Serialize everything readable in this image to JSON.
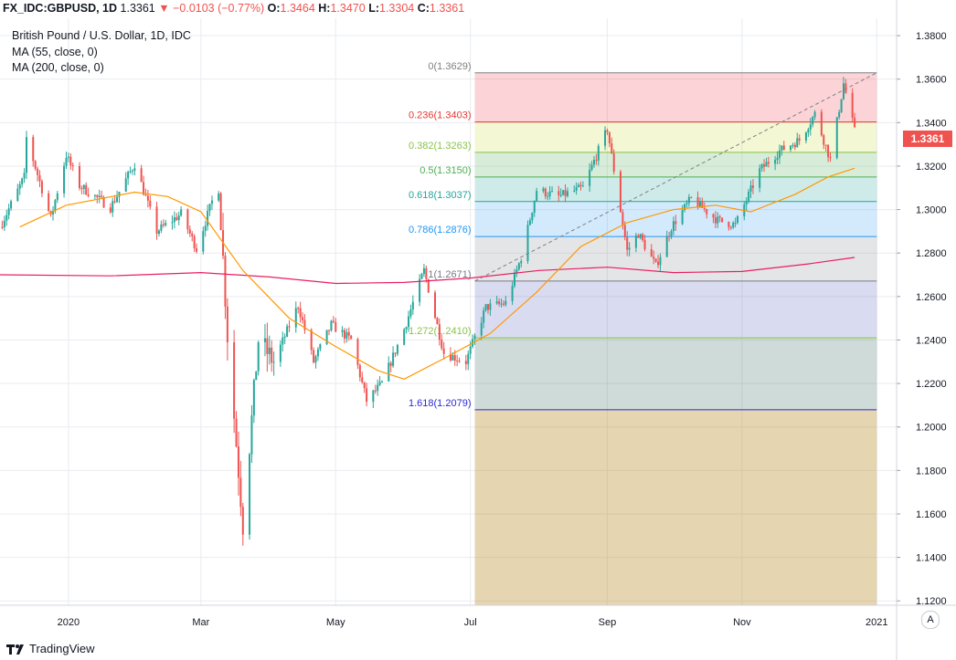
{
  "header": {
    "symbol": "FX_IDC:GBPUSD, 1D",
    "last": "1.3361",
    "change_arrow": "▼",
    "change": "−0.0103 (−0.77%)",
    "open_label": "O:",
    "open": "1.3464",
    "high_label": "H:",
    "high": "1.3470",
    "low_label": "L:",
    "low": "1.3304",
    "close_label": "C:",
    "close": "1.3361"
  },
  "legend": {
    "title": "British Pound / U.S. Dollar, 1D, IDC",
    "ma55": "MA (55, close, 0)",
    "ma200": "MA (200, close, 0)"
  },
  "footer": {
    "brand": "TradingView",
    "auto_button": "A",
    "logo_icon": "tradingview-logo-icon"
  },
  "price_tag": "1.3361",
  "colors": {
    "up": "#26a69a",
    "down": "#ef5350",
    "ma55": "#ff9800",
    "ma200": "#e91e63",
    "grid": "#e9ebf0",
    "axis_text": "#131722"
  },
  "chart_data": {
    "type": "candlestick",
    "title": "British Pound / U.S. Dollar, 1D, IDC",
    "x_ticks": [
      "2020",
      "Mar",
      "May",
      "Jul",
      "Sep",
      "Nov",
      "2021"
    ],
    "y_ticks": [
      "1.1200",
      "1.1400",
      "1.1600",
      "1.1800",
      "1.2000",
      "1.2200",
      "1.2400",
      "1.2600",
      "1.2800",
      "1.3000",
      "1.3200",
      "1.3400",
      "1.3600",
      "1.3800"
    ],
    "y_range": [
      1.118,
      1.388
    ],
    "x_range": [
      "2019-12-01",
      "2021-01-10"
    ],
    "grid": true,
    "close_path": [
      [
        "2019-12-01",
        1.292
      ],
      [
        "2019-12-12",
        1.315
      ],
      [
        "2019-12-13",
        1.333
      ],
      [
        "2019-12-24",
        1.296
      ],
      [
        "2019-12-31",
        1.325
      ],
      [
        "2020-01-06",
        1.311
      ],
      [
        "2020-01-20",
        1.301
      ],
      [
        "2020-01-31",
        1.321
      ],
      [
        "2020-02-10",
        1.29
      ],
      [
        "2020-02-21",
        1.298
      ],
      [
        "2020-02-28",
        1.282
      ],
      [
        "2020-03-09",
        1.313
      ],
      [
        "2020-03-13",
        1.242
      ],
      [
        "2020-03-20",
        1.155
      ],
      [
        "2020-03-27",
        1.24
      ],
      [
        "2020-04-03",
        1.23
      ],
      [
        "2020-04-14",
        1.256
      ],
      [
        "2020-04-21",
        1.23
      ],
      [
        "2020-04-29",
        1.247
      ],
      [
        "2020-05-08",
        1.24
      ],
      [
        "2020-05-15",
        1.212
      ],
      [
        "2020-05-22",
        1.22
      ],
      [
        "2020-06-01",
        1.245
      ],
      [
        "2020-06-10",
        1.272
      ],
      [
        "2020-06-19",
        1.234
      ],
      [
        "2020-06-29",
        1.23
      ],
      [
        "2020-07-08",
        1.255
      ],
      [
        "2020-07-17",
        1.257
      ],
      [
        "2020-07-24",
        1.278
      ],
      [
        "2020-07-31",
        1.309
      ],
      [
        "2020-08-10",
        1.306
      ],
      [
        "2020-08-21",
        1.31
      ],
      [
        "2020-09-01",
        1.337
      ],
      [
        "2020-09-10",
        1.281
      ],
      [
        "2020-09-15",
        1.289
      ],
      [
        "2020-09-23",
        1.274
      ],
      [
        "2020-09-30",
        1.292
      ],
      [
        "2020-10-09",
        1.305
      ],
      [
        "2020-10-21",
        1.295
      ],
      [
        "2020-10-29",
        1.293
      ],
      [
        "2020-11-09",
        1.318
      ],
      [
        "2020-11-18",
        1.327
      ],
      [
        "2020-11-27",
        1.332
      ],
      [
        "2020-12-04",
        1.344
      ],
      [
        "2020-12-11",
        1.323
      ],
      [
        "2020-12-17",
        1.358
      ],
      [
        "2020-12-22",
        1.336
      ]
    ],
    "ma55": [
      [
        "2019-12-10",
        1.292
      ],
      [
        "2019-12-31",
        1.302
      ],
      [
        "2020-01-31",
        1.308
      ],
      [
        "2020-02-15",
        1.306
      ],
      [
        "2020-03-01",
        1.299
      ],
      [
        "2020-03-20",
        1.272
      ],
      [
        "2020-04-10",
        1.25
      ],
      [
        "2020-05-01",
        1.237
      ],
      [
        "2020-05-20",
        1.226
      ],
      [
        "2020-06-01",
        1.222
      ],
      [
        "2020-06-20",
        1.232
      ],
      [
        "2020-07-10",
        1.243
      ],
      [
        "2020-07-31",
        1.262
      ],
      [
        "2020-08-20",
        1.283
      ],
      [
        "2020-09-10",
        1.294
      ],
      [
        "2020-10-01",
        1.3
      ],
      [
        "2020-10-20",
        1.302
      ],
      [
        "2020-11-05",
        1.299
      ],
      [
        "2020-11-25",
        1.307
      ],
      [
        "2020-12-10",
        1.315
      ],
      [
        "2020-12-22",
        1.319
      ]
    ],
    "ma200": [
      [
        "2019-12-01",
        1.27
      ],
      [
        "2020-01-20",
        1.2695
      ],
      [
        "2020-03-01",
        1.271
      ],
      [
        "2020-04-01",
        1.269
      ],
      [
        "2020-05-01",
        1.266
      ],
      [
        "2020-06-01",
        1.2665
      ],
      [
        "2020-07-01",
        1.2685
      ],
      [
        "2020-08-01",
        1.272
      ],
      [
        "2020-09-01",
        1.2735
      ],
      [
        "2020-10-01",
        1.271
      ],
      [
        "2020-11-01",
        1.2715
      ],
      [
        "2020-12-01",
        1.275
      ],
      [
        "2020-12-22",
        1.278
      ]
    ],
    "fibonacci": {
      "x_start": "2020-07-03",
      "x_end": "2021-01-01",
      "trend_line": [
        [
          "2020-07-03",
          1.2671
        ],
        [
          "2021-01-01",
          1.3629
        ]
      ],
      "levels": [
        {
          "ratio": "0",
          "price": 1.3629,
          "label": "0(1.3629)",
          "line": "#808080",
          "fill": "rgba(242,54,69,0.22)"
        },
        {
          "ratio": "0.236",
          "price": 1.3403,
          "label": "0.236(1.3403)",
          "line": "#e53935",
          "fill": "rgba(205,220,57,0.22)"
        },
        {
          "ratio": "0.382",
          "price": 1.3263,
          "label": "0.382(1.3263)",
          "line": "#8bc34a",
          "fill": "rgba(76,175,80,0.22)"
        },
        {
          "ratio": "0.5",
          "price": 1.315,
          "label": "0.5(1.3150)",
          "line": "#4caf50",
          "fill": "rgba(38,166,154,0.22)"
        },
        {
          "ratio": "0.618",
          "price": 1.3037,
          "label": "0.618(1.3037)",
          "line": "#26a69a",
          "fill": "rgba(33,150,243,0.20)"
        },
        {
          "ratio": "0.786",
          "price": 1.2876,
          "label": "0.786(1.2876)",
          "line": "#2196f3",
          "fill": "rgba(120,123,134,0.20)"
        },
        {
          "ratio": "1",
          "price": 1.2671,
          "label": "1(1.2671)",
          "line": "#787b86",
          "fill": "rgba(63,81,181,0.20)"
        },
        {
          "ratio": "1.272",
          "price": 1.241,
          "label": "1.272(1.2410)",
          "line": "#8bc34a",
          "fill": "rgba(38,90,80,0.22)"
        },
        {
          "ratio": "1.618",
          "price": 1.2079,
          "label": "1.618(1.2079)",
          "line": "#2a2ad4",
          "fill": "rgba(190,150,60,0.40)"
        }
      ]
    }
  }
}
